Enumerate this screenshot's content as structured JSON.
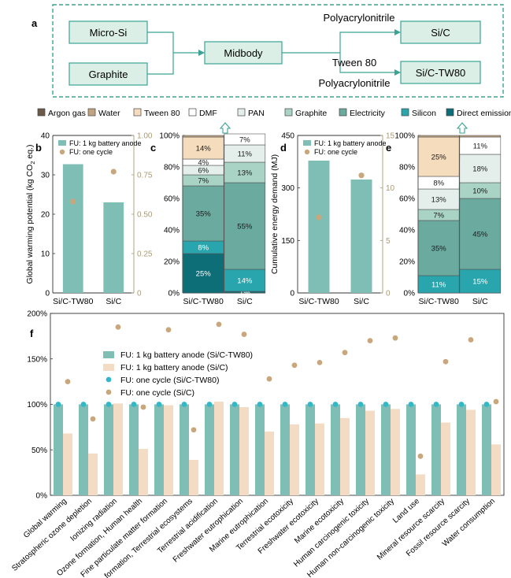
{
  "colors": {
    "teal_box_border": "#3aa394",
    "teal_box_fill": "#dcefe7",
    "bar_teal": "#7fbeb5",
    "bar_peach": "#f3dcc3",
    "dot_tan": "#c9a77c",
    "dot_cyan": "#33b8c9",
    "axis_tan": "#a79a74"
  },
  "panel_a": {
    "label": "a",
    "nodes": {
      "micro_si": "Micro-Si",
      "graphite": "Graphite",
      "midbody": "Midbody",
      "si_c": "Si/C",
      "si_c_tw80": "Si/C-TW80"
    },
    "arrow_labels": {
      "top": "Polyacrylonitrile",
      "bottom_upper": "Tween 80",
      "bottom_lower": "Polyacrylonitrile"
    }
  },
  "legend_main": [
    {
      "label": "Argon gas",
      "color": "#6b5a4a"
    },
    {
      "label": "Water",
      "color": "#bfa381"
    },
    {
      "label": "Tween 80",
      "color": "#f5dcbc"
    },
    {
      "label": "DMF",
      "color": "#ffffff"
    },
    {
      "label": "PAN",
      "color": "#e4efec"
    },
    {
      "label": "Graphite",
      "color": "#a8d3c5"
    },
    {
      "label": "Electricity",
      "color": "#6aaa9f"
    },
    {
      "label": "Silicon",
      "color": "#29a5ad"
    },
    {
      "label": "Direct emission",
      "color": "#0e6e78"
    }
  ],
  "chart_data": [
    {
      "id": "b",
      "panel_label": "b",
      "type": "bar",
      "categories": [
        "Si/C-TW80",
        "Si/C"
      ],
      "values": [
        32.7,
        23.0
      ],
      "secondary_values": [
        0.58,
        0.77
      ],
      "ylabel": "Global warming potential (kg CO",
      "ylabel_sub": "2",
      "ylabel_tail": " eq.)",
      "ylim": [
        0,
        40
      ],
      "yticks": [
        "0",
        "10",
        "20",
        "30",
        "40"
      ],
      "y2lim": [
        0,
        1.0
      ],
      "y2ticks": [
        "0",
        "0.25",
        "0.50",
        "0.75",
        "1.00"
      ],
      "legend": [
        "FU: 1 kg battery anode",
        "FU: one cycle"
      ]
    },
    {
      "id": "c",
      "panel_label": "c",
      "type": "stacked-bar-100",
      "categories": [
        "Si/C-TW80",
        "Si/C"
      ],
      "yticks": [
        "0%",
        "20%",
        "40%",
        "60%",
        "80%",
        "100%"
      ],
      "stacks": [
        {
          "name": "Si/C-TW80",
          "segments": [
            {
              "component": "Direct emission",
              "value": 25,
              "label": "25%"
            },
            {
              "component": "Silicon",
              "value": 8,
              "label": "8%"
            },
            {
              "component": "Electricity",
              "value": 35,
              "label": "35%"
            },
            {
              "component": "Graphite",
              "value": 7,
              "label": "7%"
            },
            {
              "component": "PAN",
              "value": 6,
              "label": "6%"
            },
            {
              "component": "DMF",
              "value": 4,
              "label": "4%"
            },
            {
              "component": "Tween 80",
              "value": 14,
              "label": "14%"
            },
            {
              "component": "Water",
              "value": 1,
              "label": ""
            }
          ]
        },
        {
          "name": "Si/C",
          "segments": [
            {
              "component": "Direct emission",
              "value": 1,
              "label": "1%"
            },
            {
              "component": "Silicon",
              "value": 14,
              "label": "14%"
            },
            {
              "component": "Electricity",
              "value": 55,
              "label": "55%"
            },
            {
              "component": "Graphite",
              "value": 13,
              "label": "13%"
            },
            {
              "component": "PAN",
              "value": 11,
              "label": "11%"
            },
            {
              "component": "DMF",
              "value": 7,
              "label": "7%"
            }
          ]
        }
      ]
    },
    {
      "id": "d",
      "panel_label": "d",
      "type": "bar",
      "categories": [
        "Si/C-TW80",
        "Si/C"
      ],
      "values": [
        378,
        324
      ],
      "secondary_values": [
        7.2,
        11.2
      ],
      "ylabel": "Cumulative energy demand (MJ)",
      "ylim": [
        0,
        450
      ],
      "yticks": [
        "0",
        "150",
        "300",
        "450"
      ],
      "y2lim": [
        0,
        15
      ],
      "y2ticks": [
        "0",
        "5",
        "10",
        "15"
      ],
      "legend": [
        "FU: 1 kg battery anode",
        "FU: one cycle"
      ]
    },
    {
      "id": "e",
      "panel_label": "e",
      "type": "stacked-bar-100",
      "categories": [
        "Si/C-TW80",
        "Si/C"
      ],
      "yticks": [
        "0%",
        "20%",
        "40%",
        "60%",
        "80%",
        "100%"
      ],
      "stacks": [
        {
          "name": "Si/C-TW80",
          "segments": [
            {
              "component": "Silicon",
              "value": 11,
              "label": "11%"
            },
            {
              "component": "Electricity",
              "value": 35,
              "label": "35%"
            },
            {
              "component": "Graphite",
              "value": 7,
              "label": "7%"
            },
            {
              "component": "PAN",
              "value": 13,
              "label": "13%"
            },
            {
              "component": "DMF",
              "value": 8,
              "label": "8%"
            },
            {
              "component": "Tween 80",
              "value": 25,
              "label": "25%"
            },
            {
              "component": "Water",
              "value": 1,
              "label": ""
            }
          ]
        },
        {
          "name": "Si/C",
          "segments": [
            {
              "component": "Silicon",
              "value": 15,
              "label": "15%"
            },
            {
              "component": "Electricity",
              "value": 45,
              "label": "45%"
            },
            {
              "component": "Graphite",
              "value": 10,
              "label": "10%"
            },
            {
              "component": "PAN",
              "value": 18,
              "label": "18%"
            },
            {
              "component": "DMF",
              "value": 11,
              "label": "11%"
            },
            {
              "component": "Water",
              "value": 1,
              "label": ""
            }
          ]
        }
      ]
    },
    {
      "id": "f",
      "panel_label": "f",
      "type": "bar",
      "categories": [
        "Global warming",
        "Stratospheric ozone depletion",
        "Ionizing radiation",
        "Ozone formation, Human health",
        "Fine particulate matter formation",
        "Ozone formation, Terrestrial ecosystems",
        "Terrestrial acidification",
        "Freshwater eutrophication",
        "Marine eutrophication",
        "Terrestrial ecotoxicity",
        "Freshwater ecotoxicity",
        "Marine ecotoxicity",
        "Human carcinogenic toxicity",
        "Human non-carcinogenic toxicity",
        "Land use",
        "Mineral resource scarcity",
        "Fossil resource scarcity",
        "Water consumption"
      ],
      "series": [
        {
          "name": "FU: 1 kg battery anode (Si/C-TW80)",
          "kind": "bar",
          "values": [
            100,
            100,
            100,
            100,
            100,
            100,
            100,
            100,
            100,
            100,
            100,
            100,
            100,
            100,
            100,
            100,
            100,
            100
          ]
        },
        {
          "name": "FU: 1 kg battery anode (Si/C)",
          "kind": "bar",
          "values": [
            68,
            46,
            101,
            51,
            99,
            39,
            103,
            97,
            70,
            78,
            79,
            85,
            93,
            95,
            23,
            80,
            94,
            56
          ]
        },
        {
          "name": "FU: one cycle (Si/C-TW80)",
          "kind": "dot",
          "values": [
            100,
            100,
            100,
            100,
            100,
            100,
            100,
            100,
            100,
            100,
            100,
            100,
            100,
            100,
            100,
            100,
            100,
            100
          ]
        },
        {
          "name": "FU: one cycle (Si/C)",
          "kind": "dot",
          "values": [
            125,
            84,
            185,
            97,
            182,
            72,
            188,
            177,
            128,
            143,
            146,
            157,
            170,
            173,
            43,
            147,
            171,
            103
          ]
        }
      ],
      "ylim": [
        0,
        200
      ],
      "yticks": [
        "0%",
        "50%",
        "100%",
        "150%",
        "200%"
      ]
    }
  ]
}
